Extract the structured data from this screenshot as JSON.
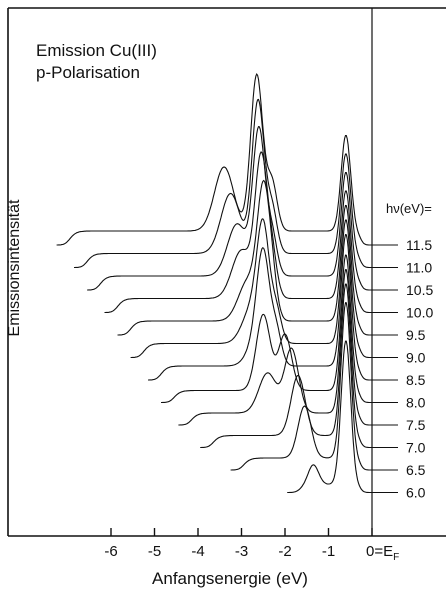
{
  "chart_data": {
    "type": "line",
    "title_lines": [
      "Emission Cu(III)",
      "p-Polarisation"
    ],
    "xlabel": "Anfangsenergie (eV)",
    "ylabel": "Emissionsintensität",
    "xlim": [
      -7,
      0
    ],
    "x_ticks": [
      "-6",
      "-5",
      "-4",
      "-3",
      "-2",
      "-1",
      "0=E"
    ],
    "x_tick_zero_subscript": "F",
    "photon_label": "hν(eV)=",
    "grid": false,
    "legend": "none",
    "peak_labels": [
      "11.5",
      "11.0",
      "10.5",
      "10.0",
      "9.5",
      "9.0",
      "8.5",
      "8.0",
      "7.5",
      "7.0",
      "6.5",
      "6.0"
    ],
    "series": [
      {
        "label": "11.5",
        "onset": -7.0,
        "fermi_peak": 2.4,
        "d_peaks": [
          {
            "e": -3.4,
            "a": 1.6,
            "w": 0.22
          },
          {
            "e": -2.65,
            "a": 3.9,
            "w": 0.14
          },
          {
            "e": -2.3,
            "a": 1.2,
            "w": 0.12
          }
        ],
        "bg": 0.35
      },
      {
        "label": "11.0",
        "onset": -6.6,
        "fermi_peak": 2.5,
        "d_peaks": [
          {
            "e": -3.25,
            "a": 1.5,
            "w": 0.22
          },
          {
            "e": -2.62,
            "a": 3.8,
            "w": 0.14
          },
          {
            "e": -2.3,
            "a": 1.1,
            "w": 0.12
          }
        ],
        "bg": 0.35
      },
      {
        "label": "10.5",
        "onset": -6.3,
        "fermi_peak": 2.6,
        "d_peaks": [
          {
            "e": -3.1,
            "a": 1.3,
            "w": 0.22
          },
          {
            "e": -2.6,
            "a": 3.6,
            "w": 0.14
          },
          {
            "e": -2.3,
            "a": 1.0,
            "w": 0.12
          }
        ],
        "bg": 0.35
      },
      {
        "label": "10.0",
        "onset": -5.9,
        "fermi_peak": 2.7,
        "d_peaks": [
          {
            "e": -3.0,
            "a": 1.2,
            "w": 0.22
          },
          {
            "e": -2.55,
            "a": 3.4,
            "w": 0.14
          },
          {
            "e": -2.3,
            "a": 1.0,
            "w": 0.12
          }
        ],
        "bg": 0.35
      },
      {
        "label": "9.5",
        "onset": -5.6,
        "fermi_peak": 2.9,
        "d_peaks": [
          {
            "e": -2.85,
            "a": 1.0,
            "w": 0.22
          },
          {
            "e": -2.5,
            "a": 3.0,
            "w": 0.14
          },
          {
            "e": -2.3,
            "a": 0.9,
            "w": 0.12
          }
        ],
        "bg": 0.35
      },
      {
        "label": "9.0",
        "onset": -5.3,
        "fermi_peak": 3.1,
        "d_peaks": [
          {
            "e": -2.75,
            "a": 0.9,
            "w": 0.22
          },
          {
            "e": -2.5,
            "a": 2.6,
            "w": 0.14
          },
          {
            "e": -2.2,
            "a": 0.8,
            "w": 0.12
          }
        ],
        "bg": 0.35
      },
      {
        "label": "8.5",
        "onset": -4.9,
        "fermi_peak": 3.3,
        "d_peaks": [
          {
            "e": -2.6,
            "a": 0.8,
            "w": 0.22
          },
          {
            "e": -2.5,
            "a": 2.2,
            "w": 0.14
          },
          {
            "e": -2.2,
            "a": 0.8,
            "w": 0.12
          }
        ],
        "bg": 0.35
      },
      {
        "label": "8.0",
        "onset": -4.6,
        "fermi_peak": 3.4,
        "d_peaks": [
          {
            "e": -2.5,
            "a": 1.9,
            "w": 0.16
          },
          {
            "e": -2.0,
            "a": 1.4,
            "w": 0.15
          }
        ],
        "bg": 0.3
      },
      {
        "label": "7.5",
        "onset": -4.2,
        "fermi_peak": 3.6,
        "d_peaks": [
          {
            "e": -2.4,
            "a": 1.0,
            "w": 0.2
          },
          {
            "e": -1.85,
            "a": 1.6,
            "w": 0.16
          }
        ],
        "bg": 0.3
      },
      {
        "label": "7.0",
        "onset": -3.7,
        "fermi_peak": 3.8,
        "d_peaks": [
          {
            "e": -1.7,
            "a": 1.5,
            "w": 0.16
          }
        ],
        "bg": 0.3
      },
      {
        "label": "6.5",
        "onset": -3.0,
        "fermi_peak": 3.9,
        "d_peaks": [
          {
            "e": -1.55,
            "a": 1.3,
            "w": 0.15
          }
        ],
        "bg": 0.3
      },
      {
        "label": "6.0",
        "onset": -1.7,
        "fermi_peak": 3.6,
        "d_peaks": [
          {
            "e": -1.35,
            "a": 0.5,
            "w": 0.12
          }
        ],
        "bg": 0.2
      }
    ]
  }
}
